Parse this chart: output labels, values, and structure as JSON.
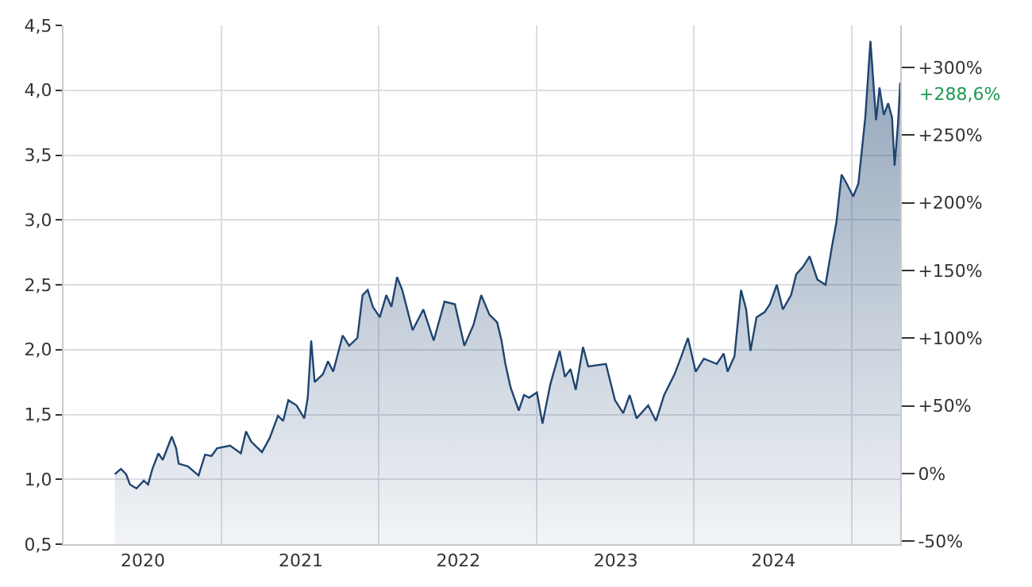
{
  "chart_data": {
    "type": "area",
    "grid": true,
    "marker": "none",
    "line_style": "solid",
    "xlim": [
      "2019-07-01",
      "2024-10-21"
    ],
    "xticks": [
      {
        "value": "2019-07-01",
        "label": null
      },
      {
        "value": "2020-01-01",
        "label": "2020"
      },
      {
        "value": "2020-07-01",
        "label": null
      },
      {
        "value": "2021-01-01",
        "label": "2021"
      },
      {
        "value": "2021-07-01",
        "label": null
      },
      {
        "value": "2022-01-01",
        "label": "2022"
      },
      {
        "value": "2022-07-01",
        "label": null
      },
      {
        "value": "2023-01-01",
        "label": "2023"
      },
      {
        "value": "2023-07-01",
        "label": null
      },
      {
        "value": "2024-01-01",
        "label": "2024"
      },
      {
        "value": "2024-07-01",
        "label": null
      }
    ],
    "ylim": [
      0.5,
      4.5
    ],
    "yticks": [
      {
        "value": 0.5,
        "label": "0,5"
      },
      {
        "value": 1.0,
        "label": "1,0"
      },
      {
        "value": 1.5,
        "label": "1,5"
      },
      {
        "value": 2.0,
        "label": "2,0"
      },
      {
        "value": 2.5,
        "label": "2,5"
      },
      {
        "value": 3.0,
        "label": "3,0"
      },
      {
        "value": 3.5,
        "label": "3,5"
      },
      {
        "value": 4.0,
        "label": "4,0"
      },
      {
        "value": 4.5,
        "label": "4,5"
      }
    ],
    "y2lim": [
      -52.1,
      331.0
    ],
    "y2ticks": [
      {
        "value": -50,
        "label": "-50%"
      },
      {
        "value": 0,
        "label": "0%"
      },
      {
        "value": 50,
        "label": "+50%"
      },
      {
        "value": 100,
        "label": "+100%"
      },
      {
        "value": 150,
        "label": "+150%"
      },
      {
        "value": 200,
        "label": "+200%"
      },
      {
        "value": 250,
        "label": "+250%"
      },
      {
        "value": 300,
        "label": "+300%"
      }
    ],
    "annotations": [
      "+288,6%"
    ],
    "series": [
      {
        "color": "#1f4470",
        "x": [
          "2019-10-28",
          "2019-11-11",
          "2019-11-23",
          "2019-12-02",
          "2019-12-17",
          "2020-01-03",
          "2020-01-13",
          "2020-01-23",
          "2020-02-06",
          "2020-02-16",
          "2020-03-08",
          "2020-03-18",
          "2020-03-24",
          "2020-04-14",
          "2020-05-09",
          "2020-05-24",
          "2020-06-08",
          "2020-06-21",
          "2020-07-21",
          "2020-08-15",
          "2020-08-27",
          "2020-09-08",
          "2020-10-03",
          "2020-10-21",
          "2020-11-09",
          "2020-11-21",
          "2020-12-03",
          "2020-12-22",
          "2021-01-09",
          "2021-01-17",
          "2021-01-25",
          "2021-02-02",
          "2021-02-21",
          "2021-03-05",
          "2021-03-17",
          "2021-04-08",
          "2021-04-23",
          "2021-05-12",
          "2021-05-24",
          "2021-06-05",
          "2021-06-17",
          "2021-07-03",
          "2021-07-18",
          "2021-07-30",
          "2021-08-12",
          "2021-08-24",
          "2021-09-17",
          "2021-10-12",
          "2021-11-05",
          "2021-11-30",
          "2021-12-24",
          "2022-01-15",
          "2022-02-05",
          "2022-02-23",
          "2022-03-14",
          "2022-04-01",
          "2022-04-11",
          "2022-04-20",
          "2022-05-02",
          "2022-05-21",
          "2022-06-02",
          "2022-06-14",
          "2022-07-02",
          "2022-07-15",
          "2022-08-02",
          "2022-08-24",
          "2022-09-05",
          "2022-09-18",
          "2022-09-30",
          "2022-10-17",
          "2022-10-29",
          "2022-12-09",
          "2022-12-30",
          "2023-01-18",
          "2023-02-02",
          "2023-02-18",
          "2023-03-17",
          "2023-04-04",
          "2023-04-23",
          "2023-05-17",
          "2023-06-02",
          "2023-06-17",
          "2023-07-05",
          "2023-07-24",
          "2023-08-23",
          "2023-09-08",
          "2023-09-17",
          "2023-10-03",
          "2023-10-18",
          "2023-10-30",
          "2023-11-09",
          "2023-11-23",
          "2023-12-12",
          "2023-12-24",
          "2024-01-09",
          "2024-01-23",
          "2024-02-11",
          "2024-02-23",
          "2024-03-10",
          "2024-03-25",
          "2024-04-12",
          "2024-05-01",
          "2024-05-16",
          "2024-05-26",
          "2024-06-07",
          "2024-06-19",
          "2024-07-04",
          "2024-07-16",
          "2024-08-01",
          "2024-08-13",
          "2024-08-26",
          "2024-09-03",
          "2024-09-13",
          "2024-09-23",
          "2024-10-02",
          "2024-10-08",
          "2024-10-16",
          "2024-10-21"
        ],
        "values": [
          1.04,
          1.08,
          1.04,
          0.96,
          0.93,
          0.99,
          0.96,
          1.08,
          1.2,
          1.15,
          1.33,
          1.24,
          1.12,
          1.1,
          1.03,
          1.19,
          1.18,
          1.24,
          1.26,
          1.2,
          1.37,
          1.29,
          1.21,
          1.32,
          1.49,
          1.45,
          1.61,
          1.57,
          1.47,
          1.63,
          2.07,
          1.75,
          1.81,
          1.91,
          1.83,
          2.11,
          2.03,
          2.09,
          2.42,
          2.46,
          2.33,
          2.25,
          2.42,
          2.33,
          2.56,
          2.46,
          2.15,
          2.31,
          2.07,
          2.37,
          2.35,
          2.03,
          2.19,
          2.42,
          2.27,
          2.21,
          2.07,
          1.89,
          1.71,
          1.53,
          1.65,
          1.63,
          1.67,
          1.43,
          1.73,
          1.99,
          1.79,
          1.85,
          1.69,
          2.02,
          1.87,
          1.89,
          1.61,
          1.51,
          1.65,
          1.47,
          1.57,
          1.45,
          1.65,
          1.81,
          1.95,
          2.09,
          1.83,
          1.93,
          1.89,
          1.97,
          1.83,
          1.95,
          2.46,
          2.31,
          1.99,
          2.25,
          2.29,
          2.35,
          2.5,
          2.31,
          2.42,
          2.58,
          2.64,
          2.72,
          2.54,
          2.5,
          2.8,
          2.98,
          3.35,
          3.28,
          3.18,
          3.28,
          3.79,
          4.38,
          3.77,
          4.02,
          3.81,
          3.9,
          3.79,
          3.42,
          3.75,
          4.06
        ]
      }
    ]
  }
}
